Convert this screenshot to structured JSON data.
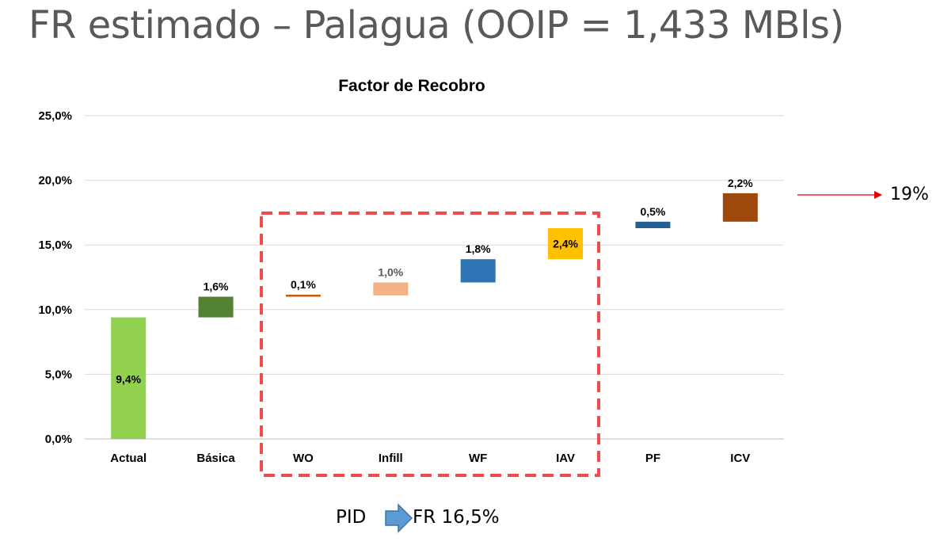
{
  "slide": {
    "title": "FR estimado – Palagua  (OOIP = 1,433 MBls)"
  },
  "chart_data": {
    "type": "bar",
    "subtype": "waterfall",
    "title": "Factor de Recobro",
    "xlabel": "",
    "ylabel": "",
    "ylim": [
      0,
      25
    ],
    "yticks": [
      "0,0%",
      "5,0%",
      "10,0%",
      "15,0%",
      "20,0%",
      "25,0%"
    ],
    "grid": true,
    "categories": [
      "Actual",
      "Básica",
      "WO",
      "Infill",
      "WF",
      "IAV",
      "PF",
      "ICV"
    ],
    "values": [
      9.4,
      1.6,
      0.1,
      1.0,
      1.8,
      2.4,
      0.5,
      2.2
    ],
    "labels": [
      "9,4%",
      "1,6%",
      "0,1%",
      "1,0%",
      "1,8%",
      "2,4%",
      "0,5%",
      "2,2%"
    ],
    "colors": [
      "#92D050",
      "#548235",
      "#C55A11",
      "#F4B183",
      "#2E75B6",
      "#FFC000",
      "#255E91",
      "#9E480E"
    ],
    "label_colors": [
      "#000000",
      "#000000",
      "#000000",
      "#595959",
      "#000000",
      "#000000",
      "#000000",
      "#000000"
    ],
    "highlight_group": [
      "WO",
      "Infill",
      "WF",
      "IAV"
    ]
  },
  "annotation": {
    "text": "19%",
    "arrow_color": "#E00000",
    "highlight_color": "#F04C4C"
  },
  "footer": {
    "left": "PID",
    "right": "FR 16,5%",
    "arrow_color": "#5B9BD5"
  }
}
